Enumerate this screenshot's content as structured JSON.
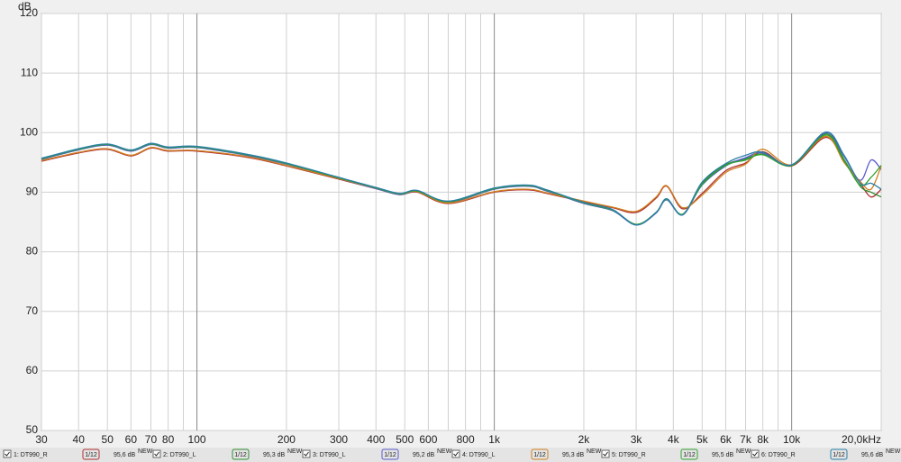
{
  "chart_data": {
    "type": "line",
    "xscale": "log",
    "grid": true,
    "ylabel": "dB",
    "xlim": [
      30,
      20000
    ],
    "ylim": [
      50,
      120
    ],
    "yticks": [
      50,
      60,
      70,
      80,
      90,
      100,
      110,
      120
    ],
    "xticks": [
      30,
      40,
      50,
      60,
      70,
      80,
      100,
      200,
      300,
      400,
      500,
      600,
      800,
      {
        "value": 1000,
        "label": "1k"
      },
      {
        "value": 2000,
        "label": "2k"
      },
      {
        "value": 3000,
        "label": "3k"
      },
      {
        "value": 4000,
        "label": "4k"
      },
      {
        "value": 5000,
        "label": "5k"
      },
      {
        "value": 6000,
        "label": "6k"
      },
      {
        "value": 7000,
        "label": "7k"
      },
      {
        "value": 8000,
        "label": "8k"
      },
      {
        "value": 10000,
        "label": "10k"
      },
      {
        "value": 20000,
        "label": "20,0kHz"
      }
    ],
    "xgrid_minor": [
      90,
      700,
      900,
      9000
    ],
    "x": [
      30,
      40,
      50,
      60,
      70,
      80,
      100,
      150,
      200,
      300,
      400,
      480,
      550,
      700,
      1000,
      1300,
      1500,
      2000,
      2500,
      3000,
      3500,
      3800,
      4300,
      5000,
      6000,
      7000,
      8000,
      10000,
      13000,
      15000,
      17000,
      18500,
      20000
    ],
    "series": [
      {
        "name": "1: DT990_R",
        "color": "#b03030",
        "smoothing": "1/12",
        "level": "95,6 dB",
        "tag": "NEW",
        "values": [
          95.2,
          96.6,
          97.2,
          96.1,
          97.4,
          96.9,
          96.9,
          95.8,
          94.4,
          92.2,
          90.6,
          89.6,
          90.0,
          88.1,
          90.0,
          90.4,
          89.8,
          88.4,
          87.4,
          86.6,
          89.0,
          91.0,
          87.2,
          89.8,
          93.6,
          94.9,
          96.8,
          94.4,
          99.2,
          95.2,
          91.5,
          89.2,
          90.5
        ]
      },
      {
        "name": "2: DT990_L",
        "color": "#2e8b2e",
        "smoothing": "1/12",
        "level": "95,3 dB",
        "tag": "NEW",
        "values": [
          95.6,
          97.2,
          98.0,
          97.0,
          98.1,
          97.5,
          97.6,
          96.2,
          94.8,
          92.4,
          90.7,
          89.7,
          90.2,
          88.4,
          90.6,
          91.1,
          90.3,
          88.2,
          87.0,
          84.6,
          86.6,
          88.8,
          86.3,
          91.5,
          94.6,
          95.6,
          96.4,
          94.6,
          99.8,
          95.5,
          91.0,
          90.0,
          89.2
        ]
      },
      {
        "name": "3: DT990_L",
        "color": "#5a5ad0",
        "smoothing": "1/12",
        "level": "95,2 dB",
        "tag": "NEW",
        "values": [
          95.5,
          97.1,
          97.9,
          96.9,
          98.0,
          97.4,
          97.5,
          96.1,
          94.7,
          92.3,
          90.6,
          89.6,
          90.1,
          88.3,
          90.5,
          91.0,
          90.2,
          88.1,
          86.9,
          84.5,
          86.5,
          88.7,
          86.2,
          91.2,
          94.4,
          95.8,
          96.6,
          94.5,
          100.0,
          96.0,
          92.0,
          95.4,
          93.8
        ]
      },
      {
        "name": "4: DT990_L",
        "color": "#d08020",
        "smoothing": "1/12",
        "level": "95,3 dB",
        "tag": "NEW",
        "values": [
          95.3,
          96.7,
          97.3,
          96.2,
          97.5,
          97.0,
          97.0,
          95.9,
          94.5,
          92.3,
          90.7,
          89.7,
          90.1,
          88.2,
          90.1,
          90.5,
          89.9,
          88.5,
          87.5,
          86.8,
          89.2,
          91.1,
          87.4,
          89.5,
          93.3,
          94.7,
          97.2,
          94.6,
          99.4,
          95.0,
          91.8,
          90.5,
          94.4
        ]
      },
      {
        "name": "5: DT990_R",
        "color": "#30a030",
        "smoothing": "1/12",
        "level": "95,5 dB",
        "tag": "NEW",
        "values": [
          95.6,
          97.2,
          98.0,
          97.0,
          98.1,
          97.5,
          97.6,
          96.2,
          94.8,
          92.4,
          90.7,
          89.7,
          90.2,
          88.4,
          90.6,
          91.1,
          90.3,
          88.2,
          87.0,
          84.6,
          86.6,
          88.8,
          86.3,
          91.3,
          94.5,
          95.4,
          96.3,
          94.5,
          99.6,
          95.3,
          91.2,
          92.5,
          94.5
        ]
      },
      {
        "name": "6: DT990_R",
        "color": "#2a7fa8",
        "smoothing": "1/12",
        "level": "95,6 dB",
        "tag": "NEW",
        "values": [
          95.7,
          97.3,
          98.1,
          97.1,
          98.2,
          97.6,
          97.7,
          96.3,
          94.9,
          92.5,
          90.8,
          89.8,
          90.3,
          88.5,
          90.7,
          91.2,
          90.4,
          88.3,
          87.1,
          84.5,
          86.6,
          88.9,
          86.2,
          91.7,
          94.8,
          96.2,
          96.7,
          94.6,
          100.1,
          96.2,
          91.5,
          91.5,
          90.5
        ]
      }
    ]
  }
}
